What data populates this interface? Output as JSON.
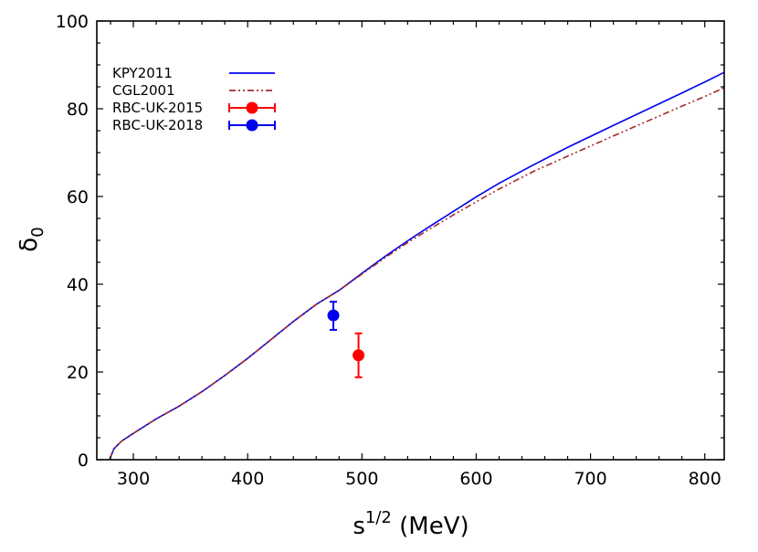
{
  "chart_data": {
    "type": "line",
    "title": "",
    "xlabel": {
      "base": "s",
      "sup": "1/2",
      "rest": " (MeV)"
    },
    "ylabel": {
      "base": "δ",
      "sub": "0"
    },
    "xlim": [
      268,
      817
    ],
    "ylim": [
      0,
      100
    ],
    "x_ticks": [
      300,
      400,
      500,
      600,
      700,
      800
    ],
    "y_ticks": [
      0,
      20,
      40,
      60,
      80,
      100
    ],
    "x_minor_step": 20,
    "y_minor_step": 5,
    "grid": false,
    "legend_position": "top-left",
    "series": [
      {
        "name": "KPY2011",
        "kind": "line",
        "color": "#0000ee",
        "dash": "solid",
        "x": [
          279.1,
          283,
          290,
          300,
          320,
          340,
          360,
          380,
          400,
          420,
          440,
          460,
          480,
          500,
          520,
          540,
          560,
          580,
          600,
          620,
          650,
          680,
          700,
          720,
          750,
          780,
          800,
          817
        ],
        "y": [
          0,
          2.5,
          4.3,
          6,
          9.3,
          12.2,
          15.5,
          19.2,
          23.1,
          27.3,
          31.5,
          35.4,
          38.6,
          42.5,
          46.3,
          49.9,
          53.3,
          56.6,
          59.9,
          63.0,
          67.2,
          71.2,
          73.7,
          76.2,
          79.9,
          83.6,
          86.1,
          88.3
        ]
      },
      {
        "name": "CGL2001",
        "kind": "line",
        "color": "#a52a2a",
        "dash": "dashdotdot",
        "x": [
          279.1,
          283,
          290,
          300,
          320,
          340,
          360,
          380,
          400,
          420,
          440,
          460,
          480,
          500,
          520,
          540,
          560,
          580,
          600,
          620,
          650,
          680,
          700,
          720,
          750,
          780,
          800,
          817
        ],
        "y": [
          0,
          2.5,
          4.3,
          6,
          9.3,
          12.2,
          15.5,
          19.2,
          23.1,
          27.3,
          31.5,
          35.4,
          38.6,
          42.3,
          46.0,
          49.5,
          52.7,
          55.8,
          58.8,
          61.7,
          65.7,
          69.2,
          71.5,
          73.8,
          77.2,
          80.6,
          82.8,
          84.8
        ]
      },
      {
        "name": "RBC-UK-2015",
        "kind": "point",
        "color": "#ff0000",
        "points": [
          {
            "x": 497,
            "y": 23.8,
            "ylow": 18.8,
            "yhigh": 28.8
          }
        ]
      },
      {
        "name": "RBC-UK-2018",
        "kind": "point",
        "color": "#0000ee",
        "points": [
          {
            "x": 475,
            "y": 32.9,
            "ylow": 29.6,
            "yhigh": 36.0
          }
        ]
      }
    ]
  }
}
